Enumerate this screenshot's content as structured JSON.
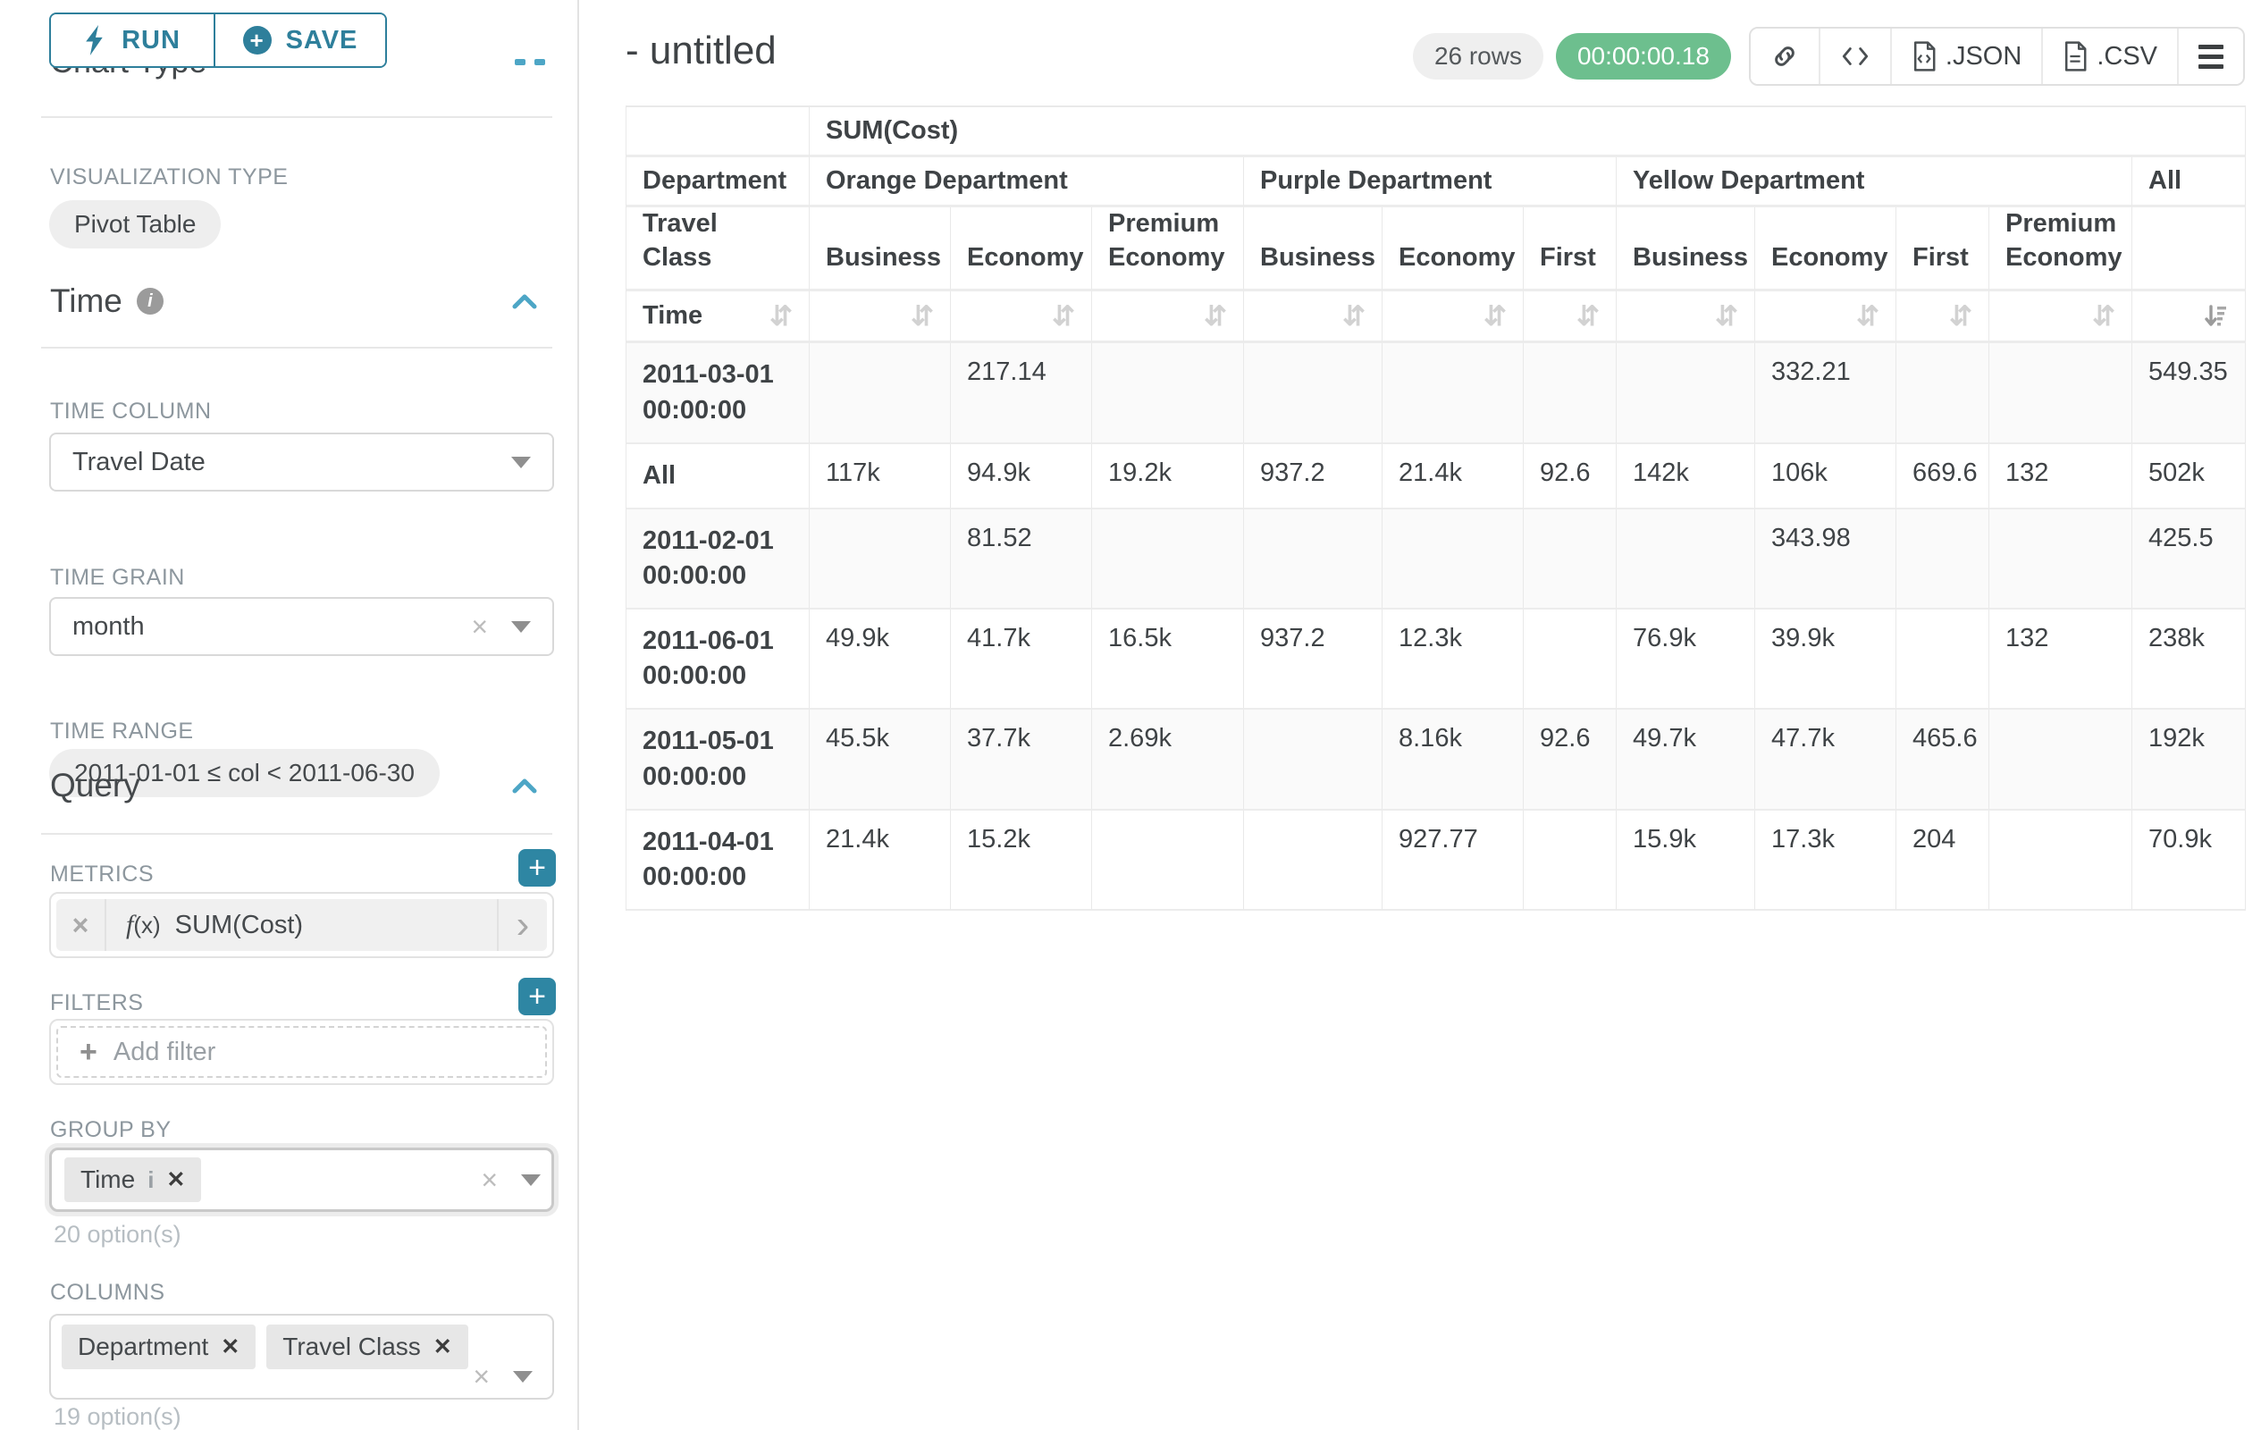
{
  "sidebar": {
    "chart_type_heading": "Chart Type",
    "run_label": "RUN",
    "save_label": "SAVE",
    "viz_type_label": "VISUALIZATION TYPE",
    "viz_type_value": "Pivot Table",
    "time": {
      "heading": "Time",
      "time_column_label": "TIME COLUMN",
      "time_column_value": "Travel Date",
      "time_grain_label": "TIME GRAIN",
      "time_grain_value": "month",
      "time_range_label": "TIME RANGE",
      "time_range_value": "2011-01-01 ≤ col < 2011-06-30"
    },
    "query": {
      "heading": "Query",
      "metrics_label": "METRICS",
      "metric_value": "SUM(Cost)",
      "filters_label": "FILTERS",
      "add_filter_label": "Add filter",
      "group_by_label": "GROUP BY",
      "group_by_chips": [
        "Time"
      ],
      "group_by_hint": "20 option(s)",
      "columns_label": "COLUMNS",
      "columns_chips": [
        "Department",
        "Travel Class"
      ],
      "columns_hint": "19 option(s)"
    }
  },
  "header": {
    "title": "- untitled",
    "row_count_badge": "26 rows",
    "timer_badge": "00:00:00.18",
    "json_label": ".JSON",
    "csv_label": ".CSV"
  },
  "pivot_table": {
    "metric_header": "SUM(Cost)",
    "col_dim1_label": "Department",
    "col_dim2_label": "Travel Class",
    "row_axis_label": "Time",
    "col_groups": [
      {
        "label": "Orange Department",
        "cols": [
          "Business",
          "Economy",
          "Premium Economy"
        ]
      },
      {
        "label": "Purple Department",
        "cols": [
          "Business",
          "Economy",
          "First"
        ]
      },
      {
        "label": "Yellow Department",
        "cols": [
          "Business",
          "Economy",
          "First",
          "Premium Economy"
        ]
      },
      {
        "label": "All",
        "cols": []
      }
    ],
    "rows": [
      {
        "label": "2011-03-01 00:00:00",
        "values": [
          "",
          "217.14",
          "",
          "",
          "",
          "",
          "",
          "332.21",
          "",
          "",
          "549.35"
        ]
      },
      {
        "label": "All",
        "values": [
          "117k",
          "94.9k",
          "19.2k",
          "937.2",
          "21.4k",
          "92.6",
          "142k",
          "106k",
          "669.6",
          "132",
          "502k"
        ]
      },
      {
        "label": "2011-02-01 00:00:00",
        "values": [
          "",
          "81.52",
          "",
          "",
          "",
          "",
          "",
          "343.98",
          "",
          "",
          "425.5"
        ]
      },
      {
        "label": "2011-06-01 00:00:00",
        "values": [
          "49.9k",
          "41.7k",
          "16.5k",
          "937.2",
          "12.3k",
          "",
          "76.9k",
          "39.9k",
          "",
          "132",
          "238k"
        ]
      },
      {
        "label": "2011-05-01 00:00:00",
        "values": [
          "45.5k",
          "37.7k",
          "2.69k",
          "",
          "8.16k",
          "92.6",
          "49.7k",
          "47.7k",
          "465.6",
          "",
          "192k"
        ]
      },
      {
        "label": "2011-04-01 00:00:00",
        "values": [
          "21.4k",
          "15.2k",
          "",
          "",
          "927.77",
          "",
          "15.9k",
          "17.3k",
          "204",
          "",
          "70.9k"
        ]
      }
    ]
  },
  "colors": {
    "teal": "#2e7f9b",
    "teal_light": "#4da6c6",
    "green": "#6dbf8e"
  }
}
